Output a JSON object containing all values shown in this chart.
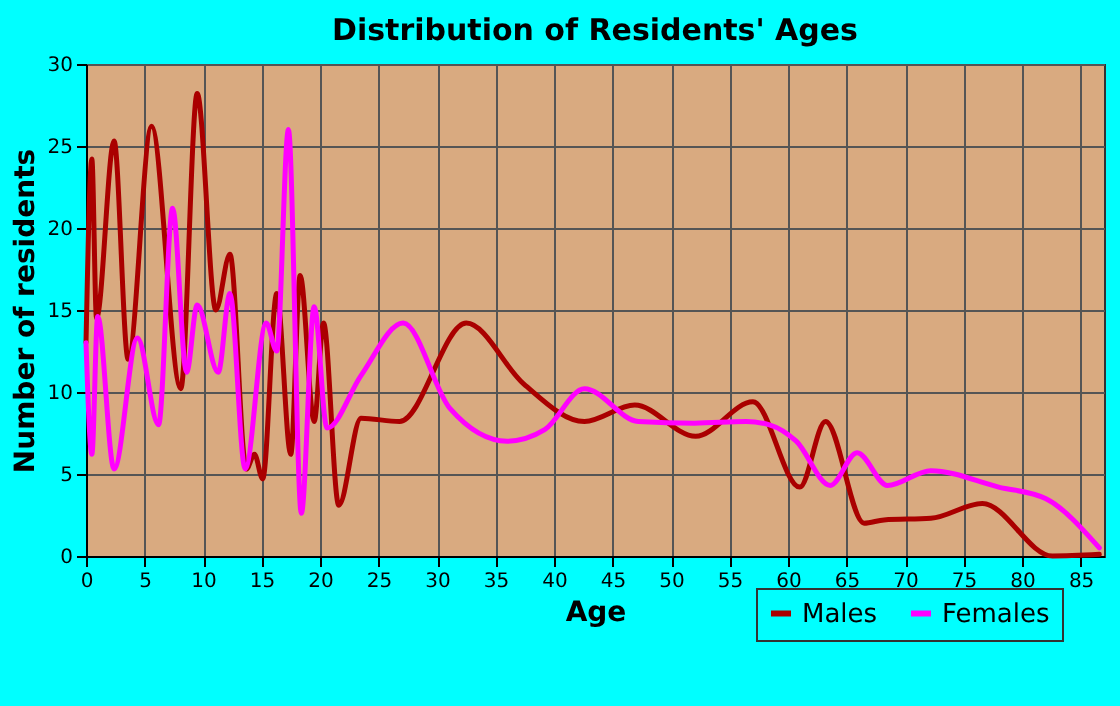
{
  "chart_data": {
    "type": "line",
    "title": "Distribution of Residents' Ages",
    "xlabel": "Age",
    "ylabel": "Number of residents",
    "xlim": [
      0,
      87
    ],
    "xticks": [
      0,
      5,
      10,
      15,
      20,
      25,
      30,
      35,
      40,
      45,
      50,
      55,
      60,
      65,
      70,
      75,
      80,
      85
    ],
    "ylim": [
      0,
      30
    ],
    "yticks": [
      0,
      5,
      10,
      15,
      20,
      25,
      30
    ],
    "grid": true,
    "legend": "bottom right",
    "line_style": "solid",
    "marker": "none",
    "series": [
      {
        "name": "Males",
        "color": "#aa0000",
        "x": [
          0,
          0.5,
          0.9,
          2.4,
          3.6,
          5.6,
          8.1,
          9.5,
          11.1,
          12.3,
          13.7,
          14.4,
          15.1,
          16.3,
          17.5,
          18.3,
          19.5,
          20.3,
          21.6,
          23.5,
          26.8,
          32.5,
          37.4,
          42.6,
          46.9,
          52.1,
          57.0,
          61.0,
          63.2,
          66.5,
          68.2,
          72.2,
          76.6,
          82.6,
          86.6
        ],
        "values": [
          13,
          24.2,
          14.5,
          25.3,
          12,
          26.2,
          10.2,
          28.2,
          15,
          18.4,
          5.3,
          6.2,
          4.7,
          16,
          6.2,
          17.1,
          8.2,
          14.2,
          3.1,
          8.4,
          8.2,
          14.2,
          10.5,
          8.2,
          9.2,
          7.3,
          9.4,
          4.2,
          8.2,
          2,
          2.2,
          2.3,
          3.2,
          0,
          0.1
        ]
      },
      {
        "name": "Females",
        "color": "#ff00ff",
        "x": [
          0,
          0.5,
          1,
          2.4,
          4.4,
          6.2,
          7.4,
          8.6,
          9.5,
          11.3,
          12.3,
          13.6,
          15.4,
          16.3,
          17.3,
          18.4,
          19.5,
          20.6,
          23.5,
          27.1,
          31.1,
          36,
          39.2,
          42.6,
          47.2,
          52,
          56.4,
          58.4,
          60.7,
          63.6,
          65.9,
          68.5,
          72.2,
          78,
          82,
          86.6
        ],
        "values": [
          13,
          6.2,
          14.6,
          5.3,
          13.3,
          8,
          21.2,
          11.2,
          15.3,
          11.2,
          16,
          5.3,
          14.2,
          12.5,
          26,
          2.6,
          15.2,
          7.8,
          11,
          14.2,
          9,
          7,
          7.7,
          10.2,
          8.2,
          8.1,
          8.2,
          8,
          7,
          4.3,
          6.3,
          4.3,
          5.2,
          4.2,
          3.5,
          0.5
        ]
      }
    ]
  }
}
